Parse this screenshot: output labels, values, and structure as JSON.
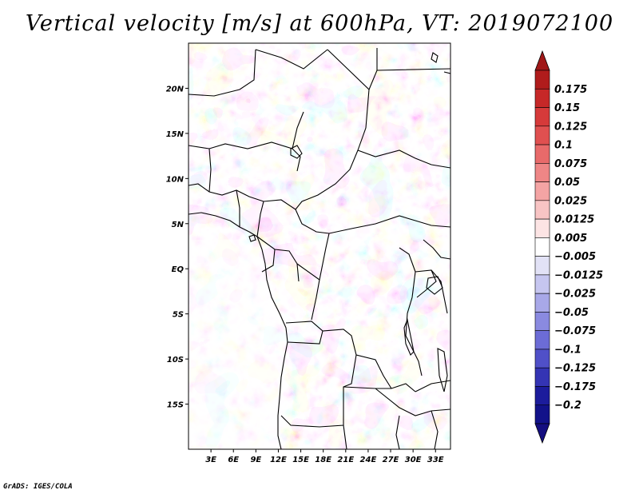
{
  "title": "Vertical velocity [m/s] at 600hPa, VT: 2019072100",
  "credit": "GrADS: IGES/COLA",
  "map": {
    "lon_labels": [
      "3E",
      "6E",
      "9E",
      "12E",
      "15E",
      "18E",
      "21E",
      "24E",
      "27E",
      "30E",
      "33E"
    ],
    "lon_values": [
      3,
      6,
      9,
      12,
      15,
      18,
      21,
      24,
      27,
      30,
      33
    ],
    "lat_labels": [
      "20N",
      "15N",
      "10N",
      "5N",
      "EQ",
      "5S",
      "10S",
      "15S"
    ],
    "lat_values": [
      20,
      15,
      10,
      5,
      0,
      -5,
      -10,
      -15
    ],
    "extent": {
      "lon_min": 0,
      "lon_max": 35,
      "lat_min": -20,
      "lat_max": 25
    }
  },
  "colorbar": {
    "labels": [
      "0.175",
      "0.15",
      "0.125",
      "0.1",
      "0.075",
      "0.05",
      "0.025",
      "0.0125",
      "0.005",
      "−0.005",
      "−0.0125",
      "−0.025",
      "−0.05",
      "−0.075",
      "−0.1",
      "−0.125",
      "−0.175",
      "−0.2"
    ],
    "colors": [
      "#b01c1c",
      "#c62828",
      "#d63a3a",
      "#e05050",
      "#e86a6a",
      "#ee8686",
      "#f4a4a4",
      "#f8c4c4",
      "#fce4e4",
      "#ffffff",
      "#e2e2f6",
      "#c6c6f0",
      "#a8a8e8",
      "#8a8ae0",
      "#6c6cd6",
      "#5050c8",
      "#3434b4",
      "#1c1c9c",
      "#12128a"
    ],
    "top_arrow_color": "#a01818",
    "bottom_arrow_color": "#140e80"
  }
}
